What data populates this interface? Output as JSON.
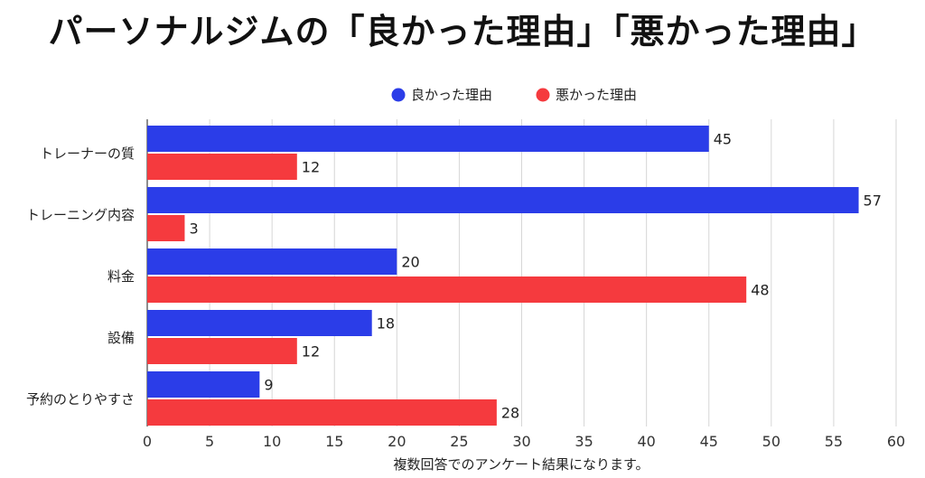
{
  "title": "パーソナルジムの「良かった理由」「悪かった理由」",
  "chart_data": {
    "type": "bar",
    "orientation": "horizontal",
    "categories": [
      "トレーナーの質",
      "トレーニング内容",
      "料金",
      "設備",
      "予約のとりやすさ"
    ],
    "series": [
      {
        "name": "良かった理由",
        "color": "#2b3de8",
        "values": [
          45,
          57,
          20,
          18,
          9
        ]
      },
      {
        "name": "悪かった理由",
        "color": "#f53a3e",
        "values": [
          12,
          3,
          48,
          12,
          28
        ]
      }
    ],
    "xlim": [
      0,
      60
    ],
    "xticks": [
      0,
      5,
      10,
      15,
      20,
      25,
      30,
      35,
      40,
      45,
      50,
      55,
      60
    ],
    "grid": true,
    "legend": "top-center",
    "data_labels": true
  },
  "caption": "複数回答でのアンケート結果になります。"
}
